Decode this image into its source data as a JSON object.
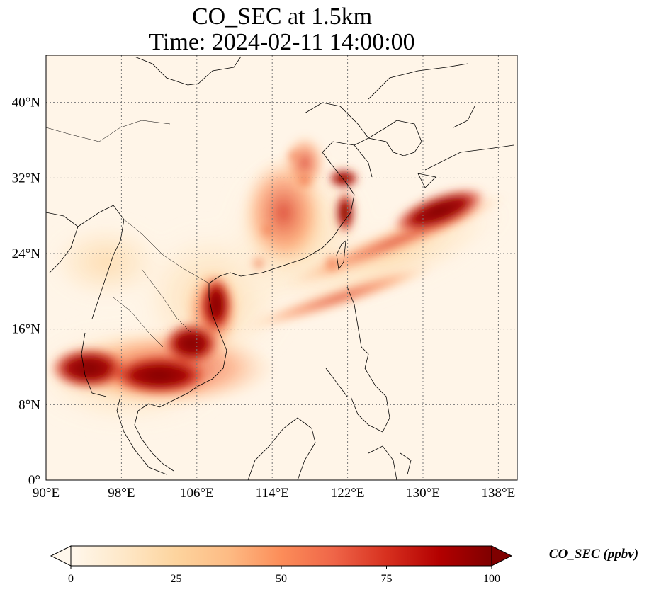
{
  "title": {
    "line1": "CO_SEC at 1.5km",
    "line2": "Time: 2024-02-11 14:00:00"
  },
  "map": {
    "extent": {
      "lon_min": 90,
      "lon_max": 140,
      "lat_min": 0,
      "lat_max": 45
    },
    "gridlines": "on",
    "lon_ticks": [
      {
        "value": 90,
        "label": "90°E"
      },
      {
        "value": 98,
        "label": "98°E"
      },
      {
        "value": 106,
        "label": "106°E"
      },
      {
        "value": 114,
        "label": "114°E"
      },
      {
        "value": 122,
        "label": "122°E"
      },
      {
        "value": 130,
        "label": "130°E"
      },
      {
        "value": 138,
        "label": "138°E"
      }
    ],
    "lat_ticks": [
      {
        "value": 0,
        "label": "0°"
      },
      {
        "value": 8,
        "label": "8°N"
      },
      {
        "value": 16,
        "label": "16°N"
      },
      {
        "value": 24,
        "label": "24°N"
      },
      {
        "value": 32,
        "label": "32°N"
      },
      {
        "value": 40,
        "label": "40°N"
      }
    ],
    "plumes": [
      {
        "region": "thailand-cambodia",
        "lon": 95.5,
        "lat": 12,
        "value": 100
      },
      {
        "region": "cambodia",
        "lon": 103,
        "lat": 11.5,
        "value": 100
      },
      {
        "region": "laos-vietnam",
        "lon": 107,
        "lat": 14,
        "value": 95
      },
      {
        "region": "northern-vietnam",
        "lon": 108,
        "lat": 19,
        "value": 100
      },
      {
        "region": "east-china-sea-japan",
        "lon": 131.5,
        "lat": 29,
        "value": 100
      },
      {
        "region": "eastern-china-coast",
        "lon": 119.5,
        "lat": 29,
        "value": 95
      },
      {
        "region": "yangtze",
        "lon": 119.5,
        "lat": 32.5,
        "value": 100
      },
      {
        "region": "taiwan",
        "lon": 119.8,
        "lat": 23.2,
        "value": 80
      },
      {
        "region": "southern-china",
        "lon": 114.5,
        "lat": 26.5,
        "value": 75
      },
      {
        "region": "central-china",
        "lon": 116.5,
        "lat": 31.5,
        "value": 70
      }
    ]
  },
  "colorbar": {
    "title": "CO_SEC (ppbv)",
    "min": 0,
    "max": 100,
    "extend": "both",
    "colormap": "OrRd",
    "colors": [
      "#fff7ec",
      "#fee8c8",
      "#fdd49e",
      "#fdbb84",
      "#fc8d59",
      "#ef6548",
      "#d7301f",
      "#b30000",
      "#7f0000"
    ],
    "ticks": [
      {
        "value": 0,
        "label": "0"
      },
      {
        "value": 25,
        "label": "25"
      },
      {
        "value": 50,
        "label": "50"
      },
      {
        "value": 75,
        "label": "75"
      },
      {
        "value": 100,
        "label": "100"
      }
    ]
  }
}
